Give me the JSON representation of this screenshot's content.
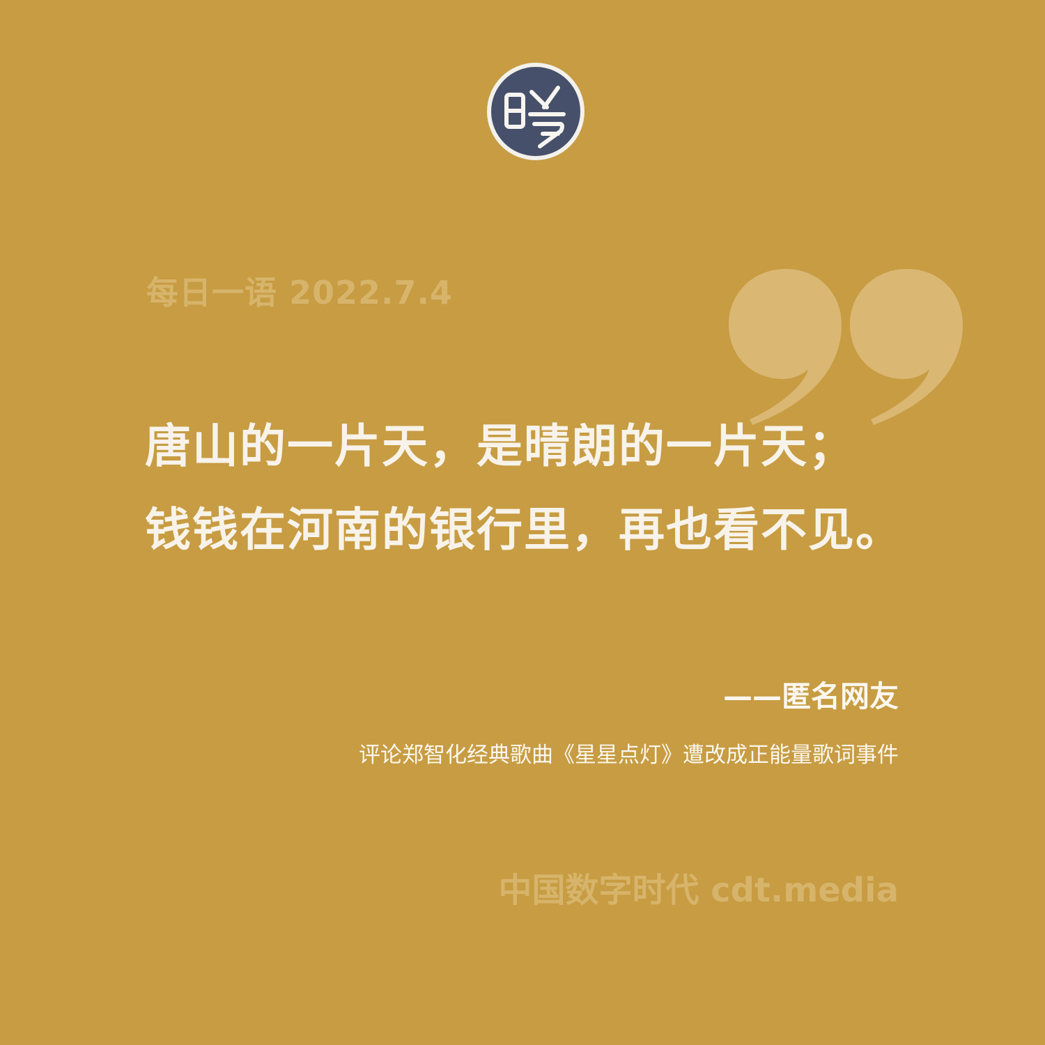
{
  "logo": {
    "icon": "cdt-seal-logo"
  },
  "header": {
    "date_line": "每日一语 2022.7.4"
  },
  "quote": {
    "line1": "唐山的一片天，是晴朗的一片天；",
    "line2": "钱钱在河南的银行里，再也看不见。"
  },
  "attribution": {
    "author": "——匿名网友",
    "context": "评论郑智化经典歌曲《星星点灯》遭改成正能量歌词事件"
  },
  "footer": {
    "brand": "中国数字时代 cdt.media"
  },
  "colors": {
    "background": "#c79c42",
    "muted_text": "#d7b46b",
    "light_text": "#f8f3ea",
    "logo_dark": "#46506a",
    "quote_mark": "#dbb774"
  }
}
